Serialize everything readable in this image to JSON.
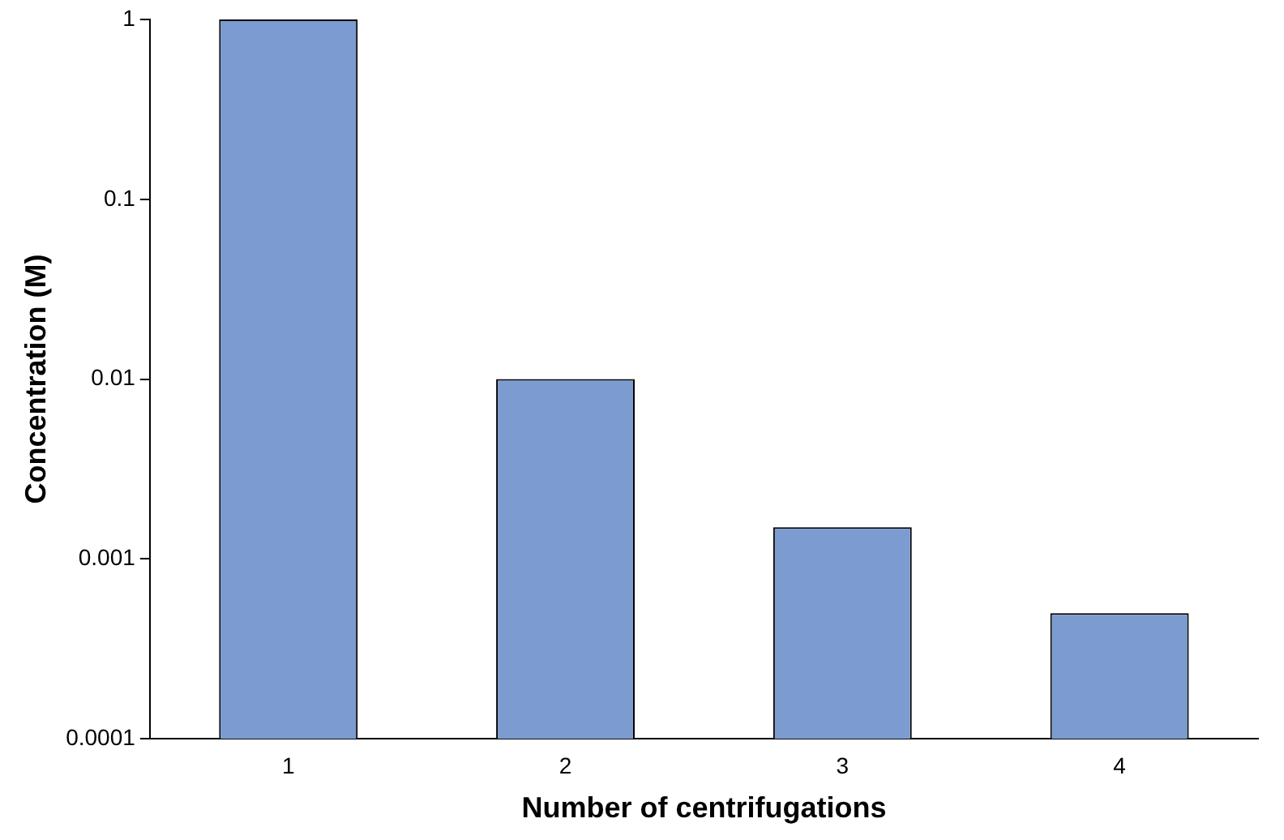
{
  "chart_data": {
    "type": "bar",
    "xlabel": "Number of centrifugations",
    "ylabel": "Concentration (M)",
    "categories": [
      "1",
      "2",
      "3",
      "4"
    ],
    "values": [
      1,
      0.01,
      0.0015,
      0.0005
    ],
    "color": "#7b9bd1",
    "log": "y",
    "ylim": [
      0.0001,
      1
    ],
    "yticks": [
      0.0001,
      0.001,
      0.01,
      0.1,
      1
    ],
    "grid": false,
    "legend": false
  }
}
